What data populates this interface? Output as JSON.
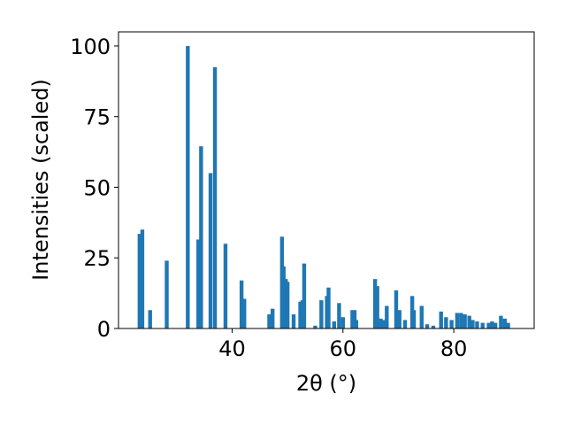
{
  "chart_data": {
    "type": "bar",
    "xlabel": "2θ (°)",
    "ylabel": "Intensities (scaled)",
    "xlim": [
      19.5,
      94.5
    ],
    "ylim": [
      0,
      105
    ],
    "xticks": [
      40,
      60,
      80
    ],
    "yticks": [
      0,
      25,
      50,
      75,
      100
    ],
    "bar_width": 0.7,
    "color": "#1f77b4",
    "grid": false,
    "x": [
      23.3,
      23.8,
      25.2,
      28.2,
      32.0,
      33.9,
      34.4,
      36.1,
      36.9,
      38.8,
      41.7,
      42.2,
      46.7,
      47.3,
      49.0,
      49.3,
      49.7,
      50.0,
      51.1,
      52.3,
      52.7,
      53.0,
      55.0,
      56.1,
      57.1,
      57.4,
      58.4,
      59.3,
      60.0,
      61.7,
      62.1,
      62.4,
      65.8,
      66.2,
      66.8,
      67.3,
      67.9,
      69.6,
      70.2,
      71.2,
      72.5,
      72.8,
      74.2,
      75.2,
      76.3,
      77.7,
      78.6,
      79.6,
      80.6,
      81.3,
      82.0,
      82.8,
      83.4,
      84.2,
      85.2,
      86.3,
      86.9,
      87.5,
      88.5,
      89.2,
      89.8
    ],
    "values": [
      33.5,
      35.0,
      6.5,
      24.0,
      100.0,
      31.5,
      64.5,
      55.0,
      92.5,
      30.0,
      17.0,
      10.5,
      5.0,
      7.0,
      32.5,
      22.0,
      17.5,
      16.5,
      5.0,
      9.5,
      10.0,
      23.0,
      1.0,
      10.0,
      11.5,
      14.5,
      2.5,
      9.0,
      4.0,
      6.5,
      6.5,
      3.0,
      17.5,
      15.0,
      3.5,
      3.0,
      8.0,
      13.5,
      6.5,
      3.0,
      11.5,
      6.5,
      8.0,
      1.5,
      1.0,
      6.0,
      4.0,
      3.0,
      5.5,
      5.5,
      5.0,
      4.5,
      3.0,
      2.5,
      2.0,
      2.0,
      2.5,
      2.0,
      4.5,
      3.5,
      2.0
    ]
  }
}
